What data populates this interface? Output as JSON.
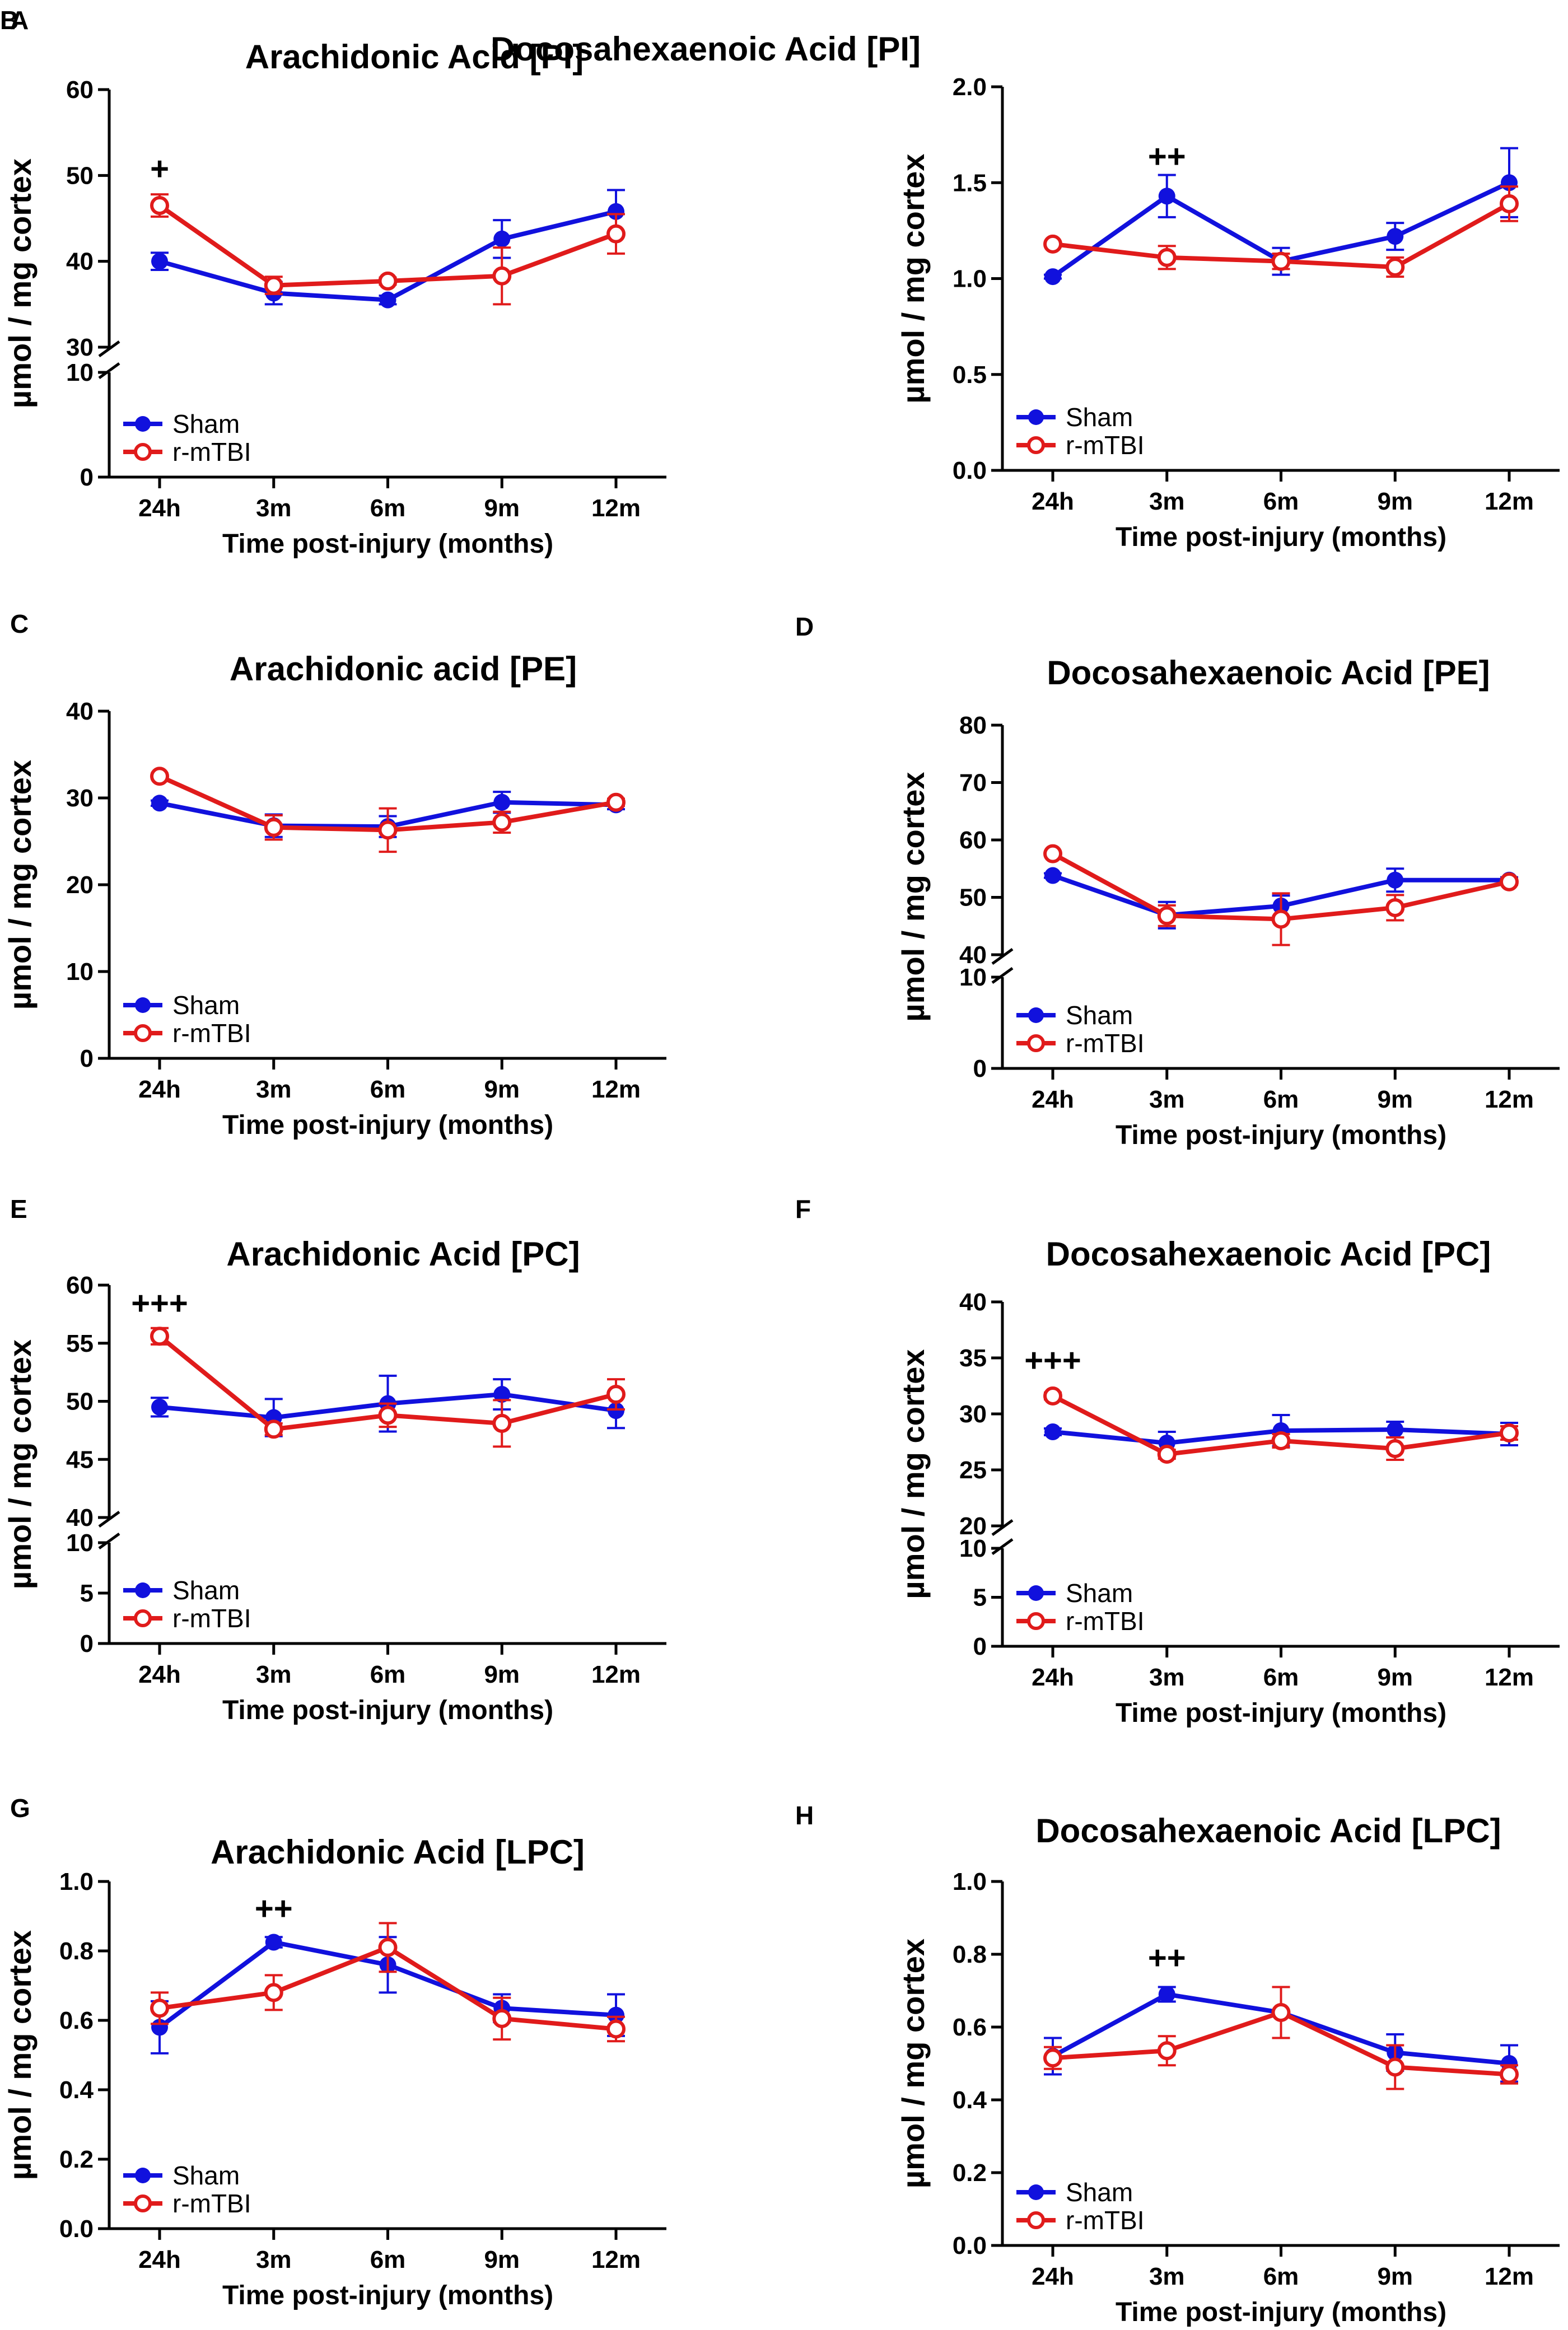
{
  "figure": {
    "colors": {
      "sham": "#1111dd",
      "rmtbi": "#e01b1b"
    },
    "legend": {
      "sham": "Sham",
      "rmtbi": "r-mTBI"
    },
    "ylabel": "µmol / mg cortex",
    "xlabel": "Time post-injury (months)"
  },
  "chart_data": [
    {
      "type": "line",
      "panel": "A",
      "title": "Arachidonic Acid  [PI]",
      "categories": [
        "24h",
        "3m",
        "6m",
        "9m",
        "12m"
      ],
      "xlabel": "Time post-injury (months)",
      "ylabel": "µmol / mg cortex",
      "ylim_lower": [
        0,
        10
      ],
      "yticks_lower": [
        "0",
        "10"
      ],
      "ylim_upper": [
        30,
        60
      ],
      "yticks_upper": [
        "30",
        "40",
        "50",
        "60"
      ],
      "series": [
        {
          "name": "Sham",
          "values": [
            40.0,
            36.3,
            35.5,
            42.6,
            45.8
          ],
          "errors": [
            1.0,
            1.3,
            0.5,
            2.2,
            2.5
          ]
        },
        {
          "name": "r-mTBI",
          "values": [
            46.5,
            37.2,
            37.7,
            38.3,
            43.2
          ],
          "errors": [
            1.3,
            1.0,
            0.4,
            3.3,
            2.3
          ]
        }
      ],
      "annotations": [
        {
          "category": "24h",
          "text": "+",
          "y": 49.5
        }
      ]
    },
    {
      "type": "line",
      "panel": "B",
      "title": "Docosahexaenoic Acid  [PI]",
      "categories": [
        "24h",
        "3m",
        "6m",
        "9m",
        "12m"
      ],
      "xlabel": "Time post-injury (months)",
      "ylabel": "µmol / mg cortex",
      "ylim": [
        0,
        2.0
      ],
      "yticks": [
        "0.0",
        "0.5",
        "1.0",
        "1.5",
        "2.0"
      ],
      "series": [
        {
          "name": "Sham",
          "values": [
            1.01,
            1.43,
            1.09,
            1.22,
            1.5
          ],
          "errors": [
            0.01,
            0.11,
            0.07,
            0.07,
            0.18
          ]
        },
        {
          "name": "r-mTBI",
          "values": [
            1.18,
            1.11,
            1.09,
            1.06,
            1.39
          ],
          "errors": [
            0.01,
            0.06,
            0.04,
            0.05,
            0.09
          ]
        }
      ],
      "annotations": [
        {
          "category": "3m",
          "text": "++",
          "y": 1.58
        }
      ]
    },
    {
      "type": "line",
      "panel": "C",
      "title": "Arachidonic acid [PE]",
      "categories": [
        "24h",
        "3m",
        "6m",
        "9m",
        "12m"
      ],
      "xlabel": "Time post-injury (months)",
      "ylabel": "µmol / mg cortex",
      "ylim": [
        0,
        40
      ],
      "yticks": [
        "0",
        "10",
        "20",
        "30",
        "40"
      ],
      "series": [
        {
          "name": "Sham",
          "values": [
            29.4,
            26.8,
            26.7,
            29.5,
            29.2
          ],
          "errors": [
            0.3,
            1.3,
            1.2,
            1.2,
            0.5
          ]
        },
        {
          "name": "r-mTBI",
          "values": [
            32.5,
            26.6,
            26.3,
            27.2,
            29.5
          ],
          "errors": [
            0.3,
            1.4,
            2.5,
            1.2,
            0.4
          ]
        }
      ],
      "annotations": []
    },
    {
      "type": "line",
      "panel": "D",
      "title": "Docosahexaenoic Acid  [PE]",
      "categories": [
        "24h",
        "3m",
        "6m",
        "9m",
        "12m"
      ],
      "xlabel": "Time post-injury (months)",
      "ylabel": "µmol / mg cortex",
      "ylim_lower": [
        0,
        10
      ],
      "yticks_lower": [
        "0",
        "10"
      ],
      "ylim_upper": [
        40,
        80
      ],
      "yticks_upper": [
        "40",
        "50",
        "60",
        "70",
        "80"
      ],
      "series": [
        {
          "name": "Sham",
          "values": [
            53.8,
            46.9,
            48.5,
            53.0,
            53.0
          ],
          "errors": [
            0.4,
            2.3,
            1.8,
            2.0,
            0.5
          ]
        },
        {
          "name": "r-mTBI",
          "values": [
            57.6,
            46.8,
            46.2,
            48.2,
            52.7
          ],
          "errors": [
            0.4,
            1.8,
            4.5,
            2.2,
            0.5
          ]
        }
      ],
      "annotations": []
    },
    {
      "type": "line",
      "panel": "E",
      "title": "Arachidonic Acid  [PC]",
      "categories": [
        "24h",
        "3m",
        "6m",
        "9m",
        "12m"
      ],
      "xlabel": "Time post-injury (months)",
      "ylabel": "µmol / mg cortex",
      "ylim_lower": [
        0,
        10
      ],
      "yticks_lower": [
        "0",
        "5",
        "10"
      ],
      "ylim_upper": [
        40,
        60
      ],
      "yticks_upper": [
        "40",
        "45",
        "50",
        "55",
        "60"
      ],
      "series": [
        {
          "name": "Sham",
          "values": [
            49.5,
            48.6,
            49.8,
            50.6,
            49.2
          ],
          "errors": [
            0.8,
            1.6,
            2.4,
            1.3,
            1.5
          ]
        },
        {
          "name": "r-mTBI",
          "values": [
            55.6,
            47.6,
            48.8,
            48.1,
            50.6
          ],
          "errors": [
            0.7,
            0.5,
            1.0,
            2.0,
            1.3
          ]
        }
      ],
      "annotations": [
        {
          "category": "24h",
          "text": "+++",
          "y": 57.5
        }
      ]
    },
    {
      "type": "line",
      "panel": "F",
      "title": "Docosahexaenoic Acid  [PC]",
      "categories": [
        "24h",
        "3m",
        "6m",
        "9m",
        "12m"
      ],
      "xlabel": "Time post-injury (months)",
      "ylabel": "µmol / mg cortex",
      "ylim_lower": [
        0,
        10
      ],
      "yticks_lower": [
        "0",
        "5",
        "10"
      ],
      "ylim_upper": [
        20,
        40
      ],
      "yticks_upper": [
        "20",
        "25",
        "30",
        "35",
        "40"
      ],
      "series": [
        {
          "name": "Sham",
          "values": [
            28.4,
            27.4,
            28.5,
            28.6,
            28.2
          ],
          "errors": [
            0.3,
            1.0,
            1.4,
            0.7,
            1.0
          ]
        },
        {
          "name": "r-mTBI",
          "values": [
            31.6,
            26.4,
            27.6,
            26.9,
            28.3
          ],
          "errors": [
            0.3,
            0.4,
            0.6,
            1.0,
            0.6
          ]
        }
      ],
      "annotations": [
        {
          "category": "24h",
          "text": "+++",
          "y": 33.8
        }
      ]
    },
    {
      "type": "line",
      "panel": "G",
      "title": "Arachidonic Acid  [LPC]",
      "categories": [
        "24h",
        "3m",
        "6m",
        "9m",
        "12m"
      ],
      "xlabel": "Time post-injury (months)",
      "ylabel": "µmol / mg cortex",
      "ylim": [
        0,
        1.0
      ],
      "yticks": [
        "0.0",
        "0.2",
        "0.4",
        "0.6",
        "0.8",
        "1.0"
      ],
      "series": [
        {
          "name": "Sham",
          "values": [
            0.58,
            0.825,
            0.76,
            0.635,
            0.615
          ],
          "errors": [
            0.075,
            0.015,
            0.08,
            0.04,
            0.06
          ]
        },
        {
          "name": "r-mTBI",
          "values": [
            0.635,
            0.68,
            0.81,
            0.605,
            0.575
          ],
          "errors": [
            0.045,
            0.05,
            0.07,
            0.06,
            0.035
          ]
        }
      ],
      "annotations": [
        {
          "category": "3m",
          "text": "++",
          "y": 0.89
        }
      ]
    },
    {
      "type": "line",
      "panel": "H",
      "title": "Docosahexaenoic Acid  [LPC]",
      "categories": [
        "24h",
        "3m",
        "6m",
        "9m",
        "12m"
      ],
      "xlabel": "Time post-injury (months)",
      "ylabel": "µmol / mg cortex",
      "ylim": [
        0,
        1.0
      ],
      "yticks": [
        "0.0",
        "0.2",
        "0.4",
        "0.6",
        "0.8",
        "1.0"
      ],
      "series": [
        {
          "name": "Sham",
          "values": [
            0.52,
            0.69,
            0.64,
            0.53,
            0.5
          ],
          "errors": [
            0.05,
            0.02,
            0.07,
            0.05,
            0.05
          ]
        },
        {
          "name": "r-mTBI",
          "values": [
            0.515,
            0.535,
            0.64,
            0.49,
            0.47
          ],
          "errors": [
            0.03,
            0.04,
            0.07,
            0.06,
            0.025
          ]
        }
      ],
      "annotations": [
        {
          "category": "3m",
          "text": "++",
          "y": 0.76
        }
      ]
    }
  ]
}
